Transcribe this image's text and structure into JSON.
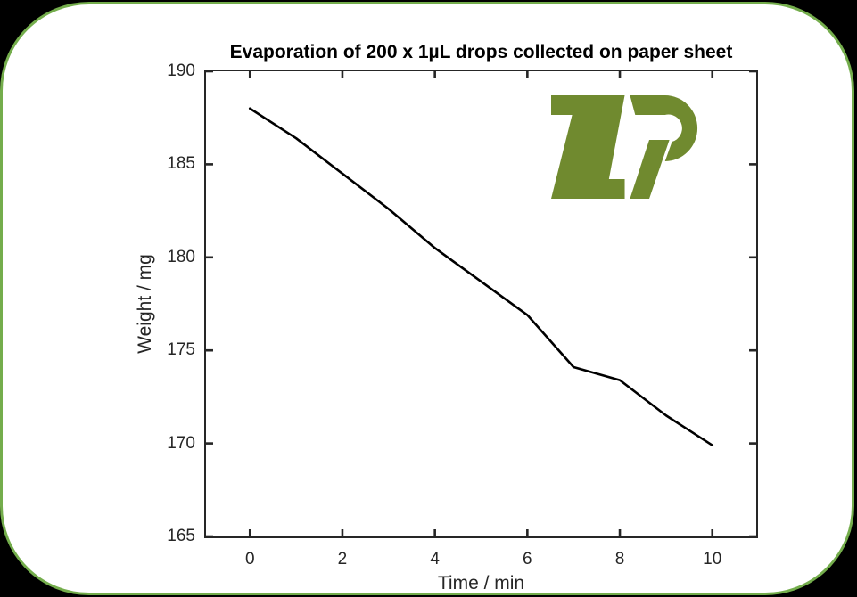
{
  "frame": {
    "border_color": "#74ad4c",
    "background": "#ffffff",
    "outside_color": "#000000"
  },
  "logo": {
    "text": "ZP",
    "color": "#708a2f"
  },
  "chart_data": {
    "type": "line",
    "title": "Evaporation of 200 x 1µL drops collected on paper sheet",
    "xlabel": "Time / min",
    "ylabel": "Weight / mg",
    "x": [
      0,
      1,
      2,
      3,
      4,
      5,
      6,
      7,
      8,
      9,
      10
    ],
    "y": [
      188.0,
      186.4,
      184.5,
      182.6,
      180.5,
      178.7,
      176.9,
      174.1,
      173.4,
      171.5,
      169.9
    ],
    "xlim": [
      -0.95,
      10.95
    ],
    "ylim": [
      165,
      190
    ],
    "xticks": [
      0,
      2,
      4,
      6,
      8,
      10
    ],
    "yticks": [
      165,
      170,
      175,
      180,
      185,
      190
    ],
    "grid": false,
    "legend": null,
    "line_color": "#000000",
    "line_width": 2.6,
    "axis_color": "#262626",
    "tick_length": 8,
    "tick_width": 2.6
  }
}
